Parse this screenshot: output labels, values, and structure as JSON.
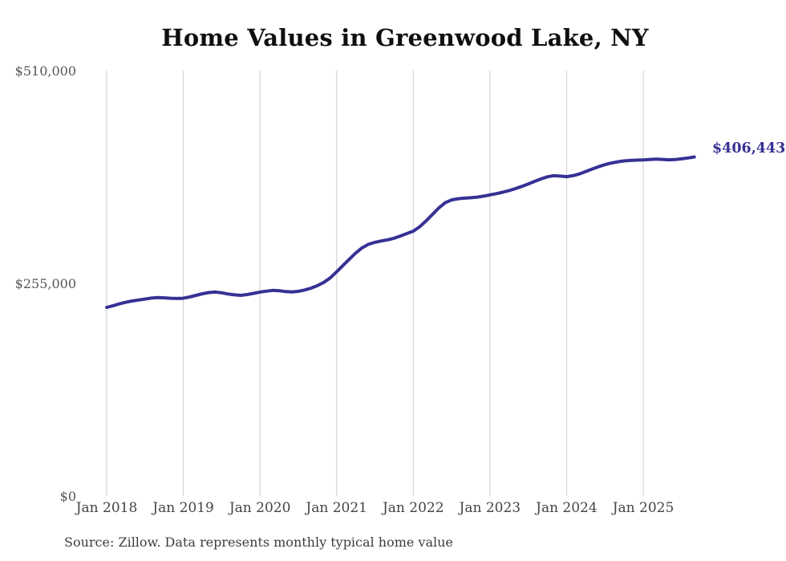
{
  "chart_data": {
    "type": "line",
    "title": "Home Values in Greenwood Lake, NY",
    "source_note": "Source: Zillow. Data represents monthly typical home value",
    "end_label": "$406,443",
    "end_value": 406443,
    "line_color": "#363194",
    "end_label_color": "#363194",
    "grid_color": "#cccccc",
    "grid": "vertical-only",
    "legend_position": "none",
    "xlabel": "",
    "ylabel": "",
    "ylim": [
      0,
      510000
    ],
    "y_ticks": [
      {
        "label": "$510,000",
        "value": 510000
      },
      {
        "label": "$255,000",
        "value": 255000
      },
      {
        "label": "$0",
        "value": 0
      }
    ],
    "x_ticks": [
      {
        "label": "Jan 2018",
        "year_index": 0
      },
      {
        "label": "Jan 2019",
        "year_index": 1
      },
      {
        "label": "Jan 2020",
        "year_index": 2
      },
      {
        "label": "Jan 2021",
        "year_index": 3
      },
      {
        "label": "Jan 2022",
        "year_index": 4
      },
      {
        "label": "Jan 2023",
        "year_index": 5
      },
      {
        "label": "Jan 2024",
        "year_index": 6
      },
      {
        "label": "Jan 2025",
        "year_index": 7
      }
    ],
    "frequency": "monthly",
    "x_start": "Jan 2018",
    "x_end": "Sep 2025",
    "series": [
      {
        "name": "Typical home value",
        "values": [
          226100,
          228200,
          230400,
          232300,
          233800,
          235000,
          236100,
          237300,
          237900,
          237600,
          237100,
          236800,
          237100,
          238600,
          240600,
          242500,
          243900,
          244500,
          243600,
          242200,
          241100,
          240600,
          241500,
          243000,
          244500,
          245600,
          246500,
          246100,
          245100,
          244600,
          245400,
          247000,
          249200,
          252200,
          256200,
          261500,
          268800,
          276500,
          284000,
          291400,
          297600,
          301800,
          304200,
          305800,
          307200,
          309100,
          311800,
          314700,
          317500,
          322800,
          329800,
          337600,
          345400,
          351600,
          355000,
          356400,
          357100,
          357600,
          358300,
          359500,
          361000,
          362500,
          364200,
          366200,
          368500,
          371200,
          374100,
          377200,
          380200,
          382700,
          384000,
          383600,
          382900,
          384000,
          386200,
          389000,
          392000,
          394800,
          397200,
          399200,
          400700,
          401700,
          402300,
          402700,
          403000,
          403400,
          403900,
          403600,
          403100,
          403400,
          404200,
          405300,
          406443
        ]
      }
    ]
  }
}
